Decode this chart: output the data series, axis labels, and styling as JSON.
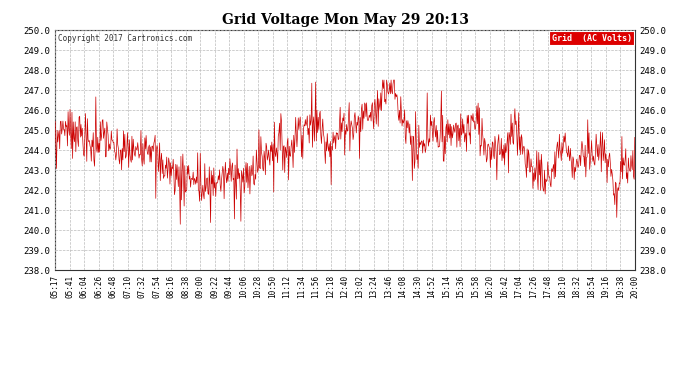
{
  "title": "Grid Voltage Mon May 29 20:13",
  "copyright": "Copyright 2017 Cartronics.com",
  "legend_label": "Grid  (AC Volts)",
  "line_color": "#cc0000",
  "bg_color": "#ffffff",
  "grid_color": "#bbbbbb",
  "ylim": [
    238.0,
    250.0
  ],
  "ytick_step": 1.0,
  "xtick_labels": [
    "05:17",
    "05:41",
    "06:04",
    "06:26",
    "06:48",
    "07:10",
    "07:32",
    "07:54",
    "08:16",
    "08:38",
    "09:00",
    "09:22",
    "09:44",
    "10:06",
    "10:28",
    "10:50",
    "11:12",
    "11:34",
    "11:56",
    "12:18",
    "12:40",
    "13:02",
    "13:24",
    "13:46",
    "14:08",
    "14:30",
    "14:52",
    "15:14",
    "15:36",
    "15:58",
    "16:20",
    "16:42",
    "17:04",
    "17:26",
    "17:48",
    "18:10",
    "18:32",
    "18:54",
    "19:16",
    "19:38",
    "20:00"
  ],
  "seed": 7,
  "n_points": 900
}
